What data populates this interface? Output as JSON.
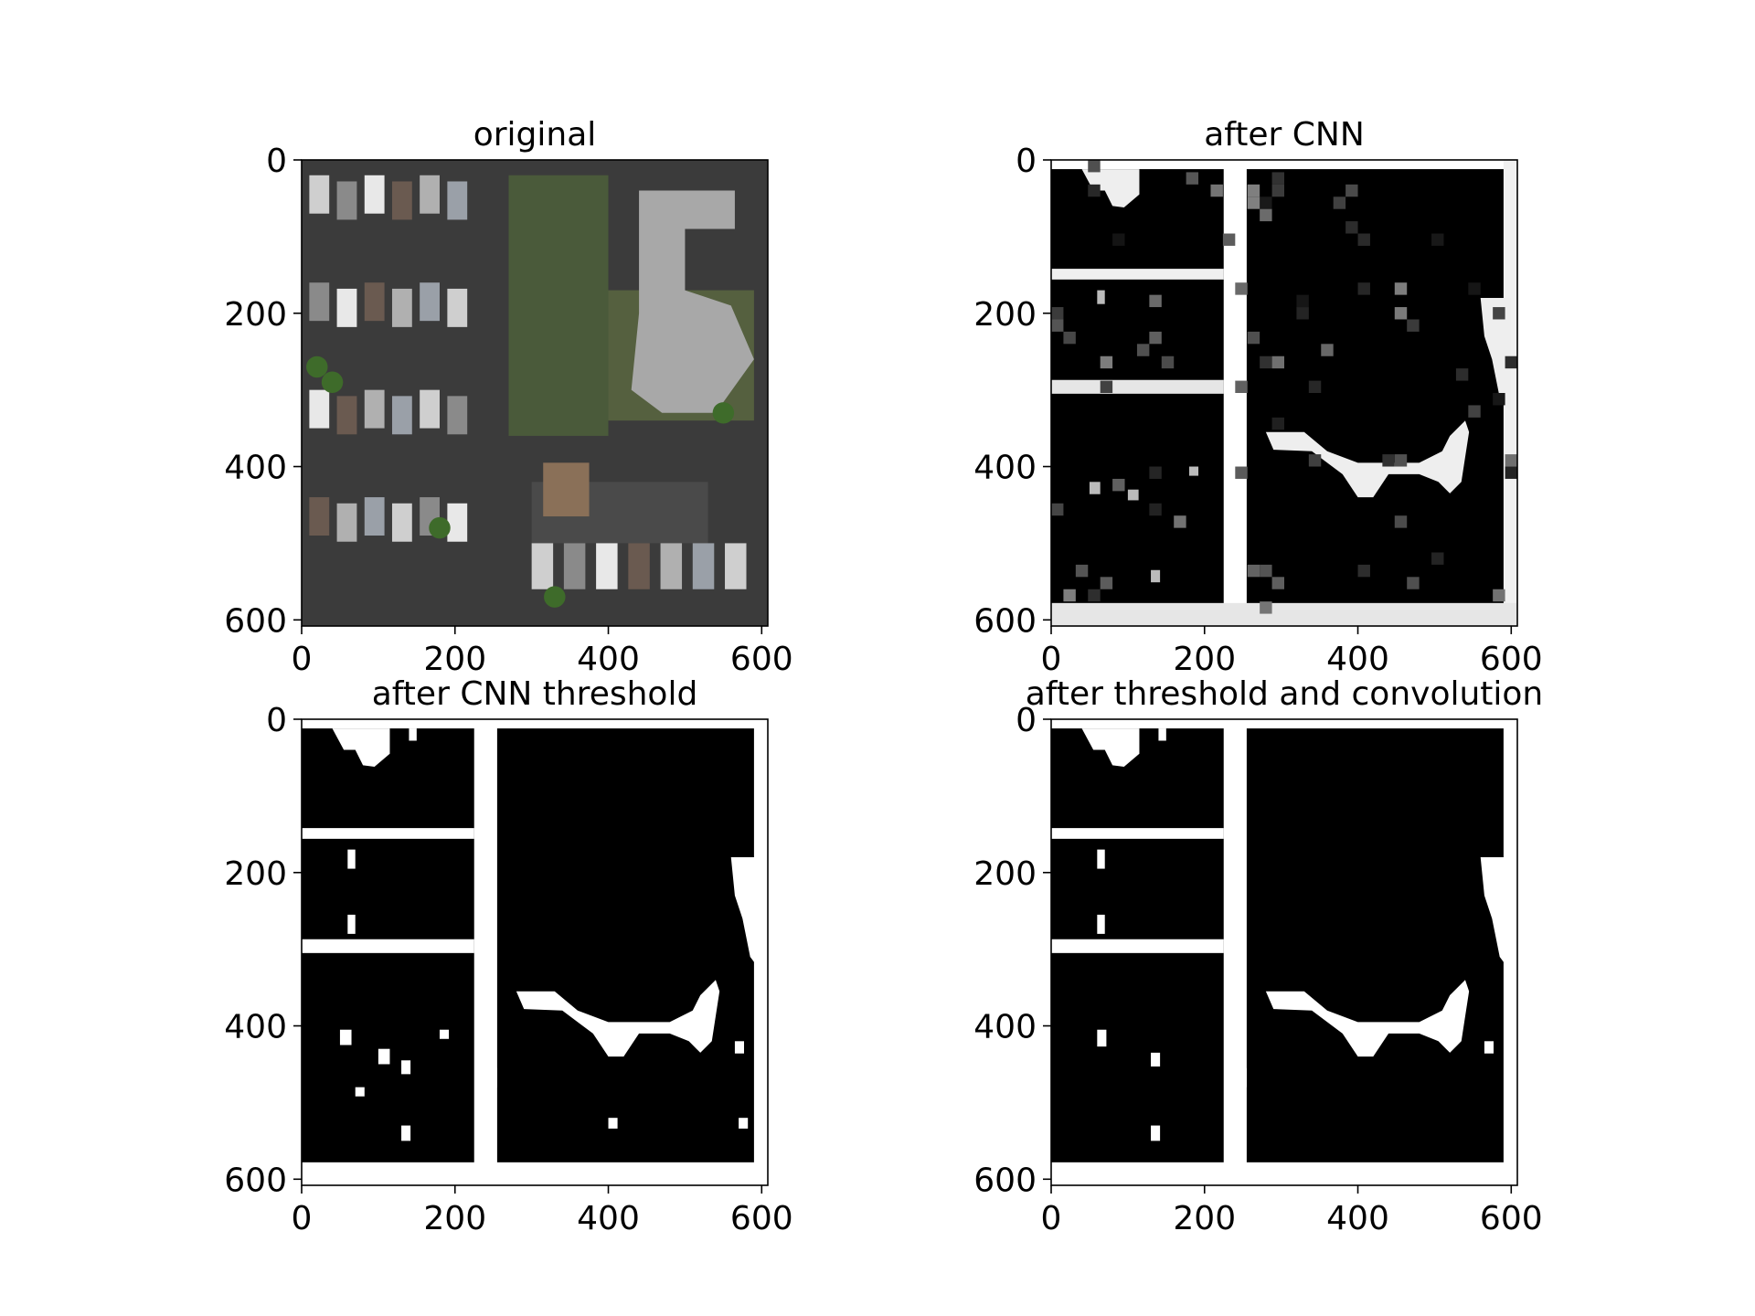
{
  "chart_data": [
    {
      "type": "heatmap",
      "title": "original",
      "xlim": [
        0,
        608
      ],
      "ylim": [
        608,
        0
      ],
      "xticks": [
        "0",
        "200",
        "400",
        "600"
      ],
      "yticks": [
        "0",
        "200",
        "400",
        "600"
      ],
      "content": "aerial-photo"
    },
    {
      "type": "heatmap",
      "title": "after CNN",
      "xlim": [
        0,
        608
      ],
      "ylim": [
        608,
        0
      ],
      "xticks": [
        "0",
        "200",
        "400",
        "600"
      ],
      "yticks": [
        "0",
        "200",
        "400",
        "600"
      ],
      "content": "grayscale-road-probability"
    },
    {
      "type": "heatmap",
      "title": "after CNN threshold",
      "xlim": [
        0,
        608
      ],
      "ylim": [
        608,
        0
      ],
      "xticks": [
        "0",
        "200",
        "400",
        "600"
      ],
      "yticks": [
        "0",
        "200",
        "400",
        "600"
      ],
      "content": "binary-mask"
    },
    {
      "type": "heatmap",
      "title": "after threshold and convolution",
      "xlim": [
        0,
        608
      ],
      "ylim": [
        608,
        0
      ],
      "xticks": [
        "0",
        "200",
        "400",
        "600"
      ],
      "yticks": [
        "0",
        "200",
        "400",
        "600"
      ],
      "content": "binary-mask-smoothed"
    }
  ],
  "colors": {
    "road": "#ffffff",
    "background": "#000000",
    "grass": "#4a5a3a",
    "asphalt": "#3b3b3b"
  }
}
